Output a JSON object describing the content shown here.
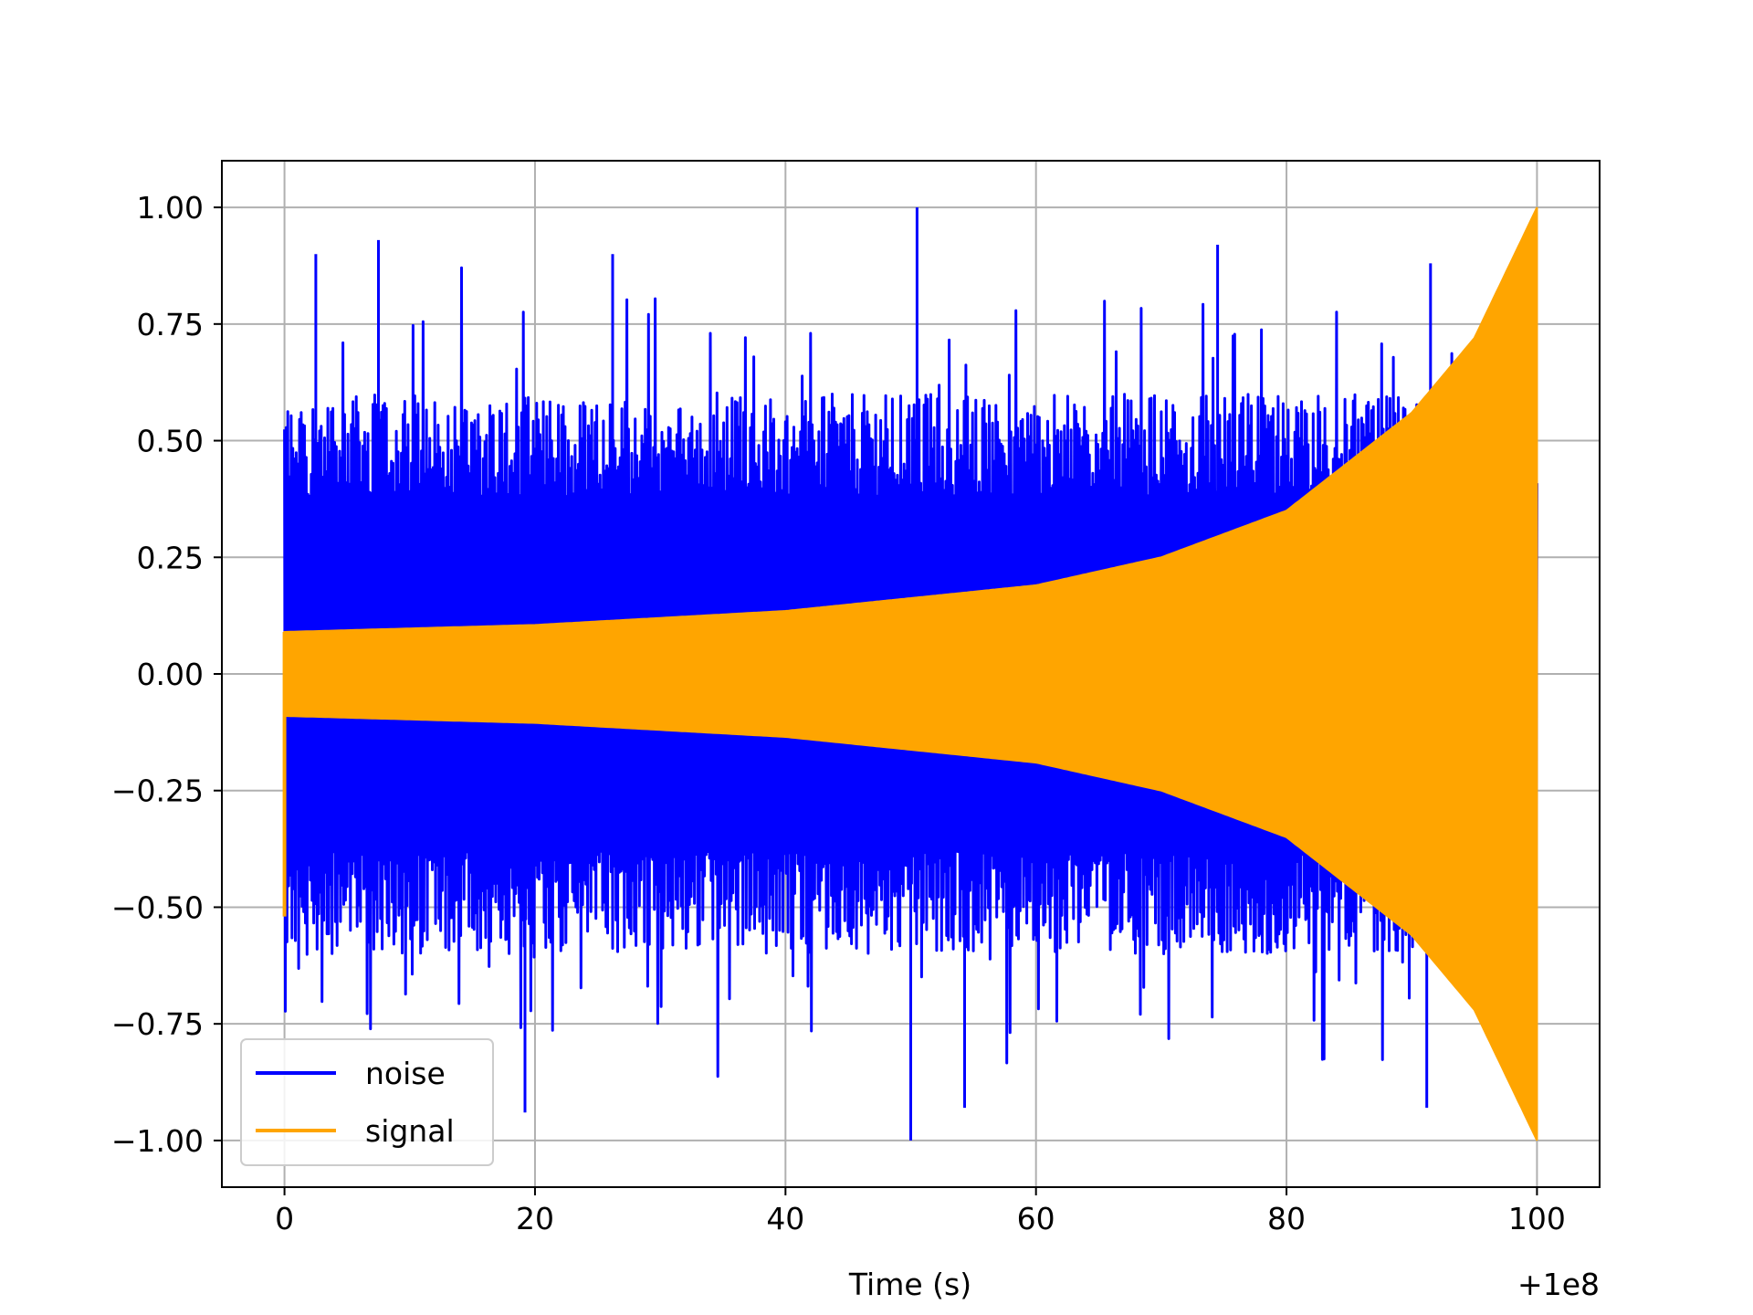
{
  "chart_data": {
    "type": "line",
    "title": "",
    "xlabel": "Time (s)",
    "ylabel": "",
    "x_offset_label": "+1e8",
    "xlim": [
      -5,
      105
    ],
    "ylim": [
      -1.1,
      1.1
    ],
    "x_ticks": [
      0,
      20,
      40,
      60,
      80,
      100
    ],
    "x_tick_labels": [
      "0",
      "20",
      "40",
      "60",
      "80",
      "100"
    ],
    "y_ticks": [
      1.0,
      0.75,
      0.5,
      0.25,
      0.0,
      -0.25,
      -0.5,
      -0.75,
      -1.0
    ],
    "y_tick_labels": [
      "1.00",
      "0.75",
      "0.50",
      "0.25",
      "0.00",
      "−0.25",
      "−0.50",
      "−0.75",
      "−1.00"
    ],
    "grid": true,
    "legend_position": "lower-left",
    "series": [
      {
        "name": "noise",
        "color": "#0000ff",
        "description_values": {
          "x_range": [
            0,
            100
          ],
          "envelope_upper_typical": 0.6,
          "envelope_lower_typical": -0.6,
          "peaks": [
            {
              "x": 50.5,
              "y": 1.0
            },
            {
              "x": 50.0,
              "y": -1.0
            },
            {
              "x": 7.5,
              "y": 0.93
            },
            {
              "x": 74.5,
              "y": 0.92
            },
            {
              "x": 2.5,
              "y": 0.9
            },
            {
              "x": 26.2,
              "y": 0.9
            },
            {
              "x": 19.2,
              "y": -0.94
            },
            {
              "x": 54.3,
              "y": -0.93
            },
            {
              "x": 91.5,
              "y": 0.88
            },
            {
              "x": 91.2,
              "y": -0.93
            }
          ]
        }
      },
      {
        "name": "signal",
        "color": "#ffa500",
        "description_values": {
          "x_range": [
            0,
            100
          ],
          "envelope": [
            {
              "x": 0,
              "amp": 0.09
            },
            {
              "x": 20,
              "amp": 0.105
            },
            {
              "x": 40,
              "amp": 0.135
            },
            {
              "x": 60,
              "amp": 0.19
            },
            {
              "x": 70,
              "amp": 0.25
            },
            {
              "x": 80,
              "amp": 0.35
            },
            {
              "x": 90,
              "amp": 0.56
            },
            {
              "x": 95,
              "amp": 0.72
            },
            {
              "x": 100,
              "amp": 1.0
            }
          ],
          "initial_transient_min": -0.52
        }
      }
    ]
  }
}
